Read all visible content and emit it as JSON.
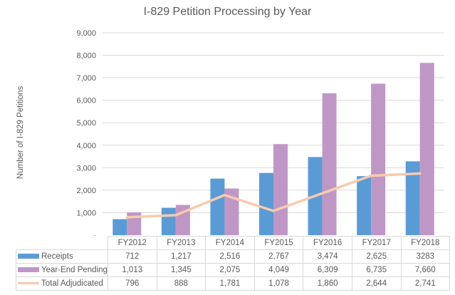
{
  "chart_data": {
    "type": "bar",
    "title": "I-829 Petition Processing by Year",
    "xlabel": "",
    "ylabel": "Number  of I-829 Petitions",
    "ylim": [
      0,
      9000
    ],
    "yticks": [
      0,
      1000,
      2000,
      3000,
      4000,
      5000,
      6000,
      7000,
      8000,
      9000
    ],
    "ytick_labels": [
      "-",
      "1,000",
      "2,000",
      "3,000",
      "4,000",
      "5,000",
      "6,000",
      "7,000",
      "8,000",
      "9,000"
    ],
    "grid": true,
    "legend_placement": "data-table-bottom",
    "categories": [
      "FY2012",
      "FY2013",
      "FY2014",
      "FY2015",
      "FY2016",
      "FY2017",
      "FY2018"
    ],
    "series": [
      {
        "name": "Receipts",
        "type": "bar",
        "color": "#5B9BD5",
        "values": [
          712,
          1217,
          2516,
          2767,
          3474,
          2625,
          3283
        ],
        "table_labels": [
          "712",
          "1,217",
          "2,516",
          "2,767",
          "3,474",
          "2,625",
          "3283"
        ]
      },
      {
        "name": "Year-End Pending",
        "type": "bar",
        "color": "#BF97C6",
        "values": [
          1013,
          1345,
          2075,
          4049,
          6309,
          6735,
          7660
        ],
        "table_labels": [
          "1,013",
          "1,345",
          "2,075",
          "4,049",
          "6,309",
          "6,735",
          "7,660"
        ]
      },
      {
        "name": "Total Adjudicated",
        "type": "line",
        "color": "#F8CBAD",
        "values": [
          796,
          888,
          1781,
          1078,
          1860,
          2644,
          2741
        ],
        "table_labels": [
          "796",
          "888",
          "1,781",
          "1,078",
          "1,860",
          "2,644",
          "2,741"
        ]
      }
    ]
  },
  "colors": {
    "gridline": "#D9D9D9",
    "text": "#595959"
  }
}
